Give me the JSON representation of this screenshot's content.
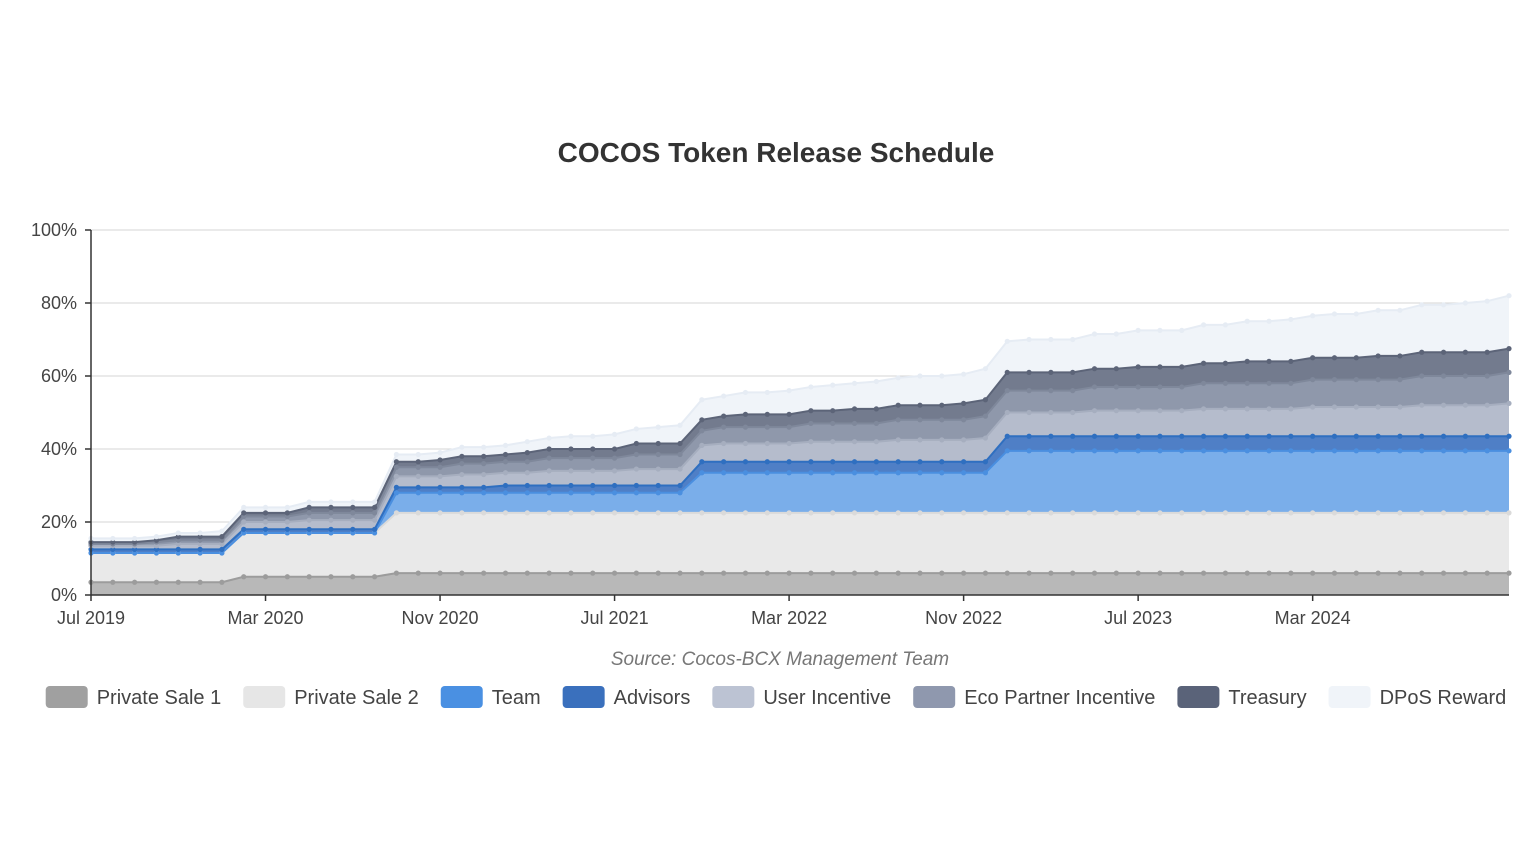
{
  "chart_data": {
    "type": "area",
    "stacked": true,
    "title": "COCOS Token Release Schedule",
    "subtitle": "",
    "source": "Source: Cocos-BCX Management Team",
    "xlabel": "",
    "ylabel": "",
    "x_tick_labels": [
      "Jul 2019",
      "Mar 2020",
      "Nov 2020",
      "Jul 2021",
      "Mar 2022",
      "Nov 2022",
      "Jul 2023",
      "Mar 2024"
    ],
    "y_tick_labels": [
      "0%",
      "20%",
      "40%",
      "60%",
      "80%",
      "100%"
    ],
    "ylim": [
      0,
      100
    ],
    "y_unit": "%",
    "grid": "horizontal",
    "legend_position": "bottom",
    "x_start": "Jul 2019",
    "x_end": "Nov 2024",
    "point_interval": "monthly",
    "series": [
      {
        "name": "Private Sale 1",
        "color": "#b8b8b8",
        "line_color": "#9c9c9c",
        "legend_color": "#a0a0a0",
        "values": [
          3.5,
          3.5,
          3.5,
          3.5,
          3.5,
          3.5,
          3.5,
          5,
          5,
          5,
          5,
          5,
          5,
          5,
          6,
          6,
          6,
          6,
          6,
          6,
          6,
          6,
          6,
          6,
          6,
          6,
          6,
          6,
          6,
          6,
          6,
          6,
          6,
          6,
          6,
          6,
          6,
          6,
          6,
          6,
          6,
          6,
          6,
          6,
          6,
          6,
          6,
          6,
          6,
          6,
          6,
          6,
          6,
          6,
          6,
          6,
          6,
          6,
          6,
          6,
          6,
          6,
          6,
          6,
          6,
          6
        ]
      },
      {
        "name": "Private Sale 2",
        "color": "#e9e9e9",
        "line_color": "#dadada",
        "legend_color": "#e6e6e6",
        "values": [
          8,
          8,
          8,
          8,
          8,
          8,
          8,
          12,
          12,
          12,
          12,
          12,
          12,
          12,
          16.5,
          16.5,
          16.5,
          16.5,
          16.5,
          16.5,
          16.5,
          16.5,
          16.5,
          16.5,
          16.5,
          16.5,
          16.5,
          16.5,
          16.5,
          16.5,
          16.5,
          16.5,
          16.5,
          16.5,
          16.5,
          16.5,
          16.5,
          16.5,
          16.5,
          16.5,
          16.5,
          16.5,
          16.5,
          16.5,
          16.5,
          16.5,
          16.5,
          16.5,
          16.5,
          16.5,
          16.5,
          16.5,
          16.5,
          16.5,
          16.5,
          16.5,
          16.5,
          16.5,
          16.5,
          16.5,
          16.5,
          16.5,
          16.5,
          16.5,
          16.5,
          16.5
        ]
      },
      {
        "name": "Team",
        "color": "#7aaeea",
        "line_color": "#4a8fe0",
        "legend_color": "#4a90e2",
        "values": [
          0,
          0,
          0,
          0,
          0,
          0,
          0,
          0,
          0,
          0,
          0,
          0,
          0,
          0,
          5.5,
          5.5,
          5.5,
          5.5,
          5.5,
          5.5,
          5.5,
          5.5,
          5.5,
          5.5,
          5.5,
          5.5,
          5.5,
          5.5,
          11,
          11,
          11,
          11,
          11,
          11,
          11,
          11,
          11,
          11,
          11,
          11,
          11,
          11,
          17,
          17,
          17,
          17,
          17,
          17,
          17,
          17,
          17,
          17,
          17,
          17,
          17,
          17,
          17,
          17,
          17,
          17,
          17,
          17,
          17,
          17,
          17,
          17
        ]
      },
      {
        "name": "Advisors",
        "color": "#4f7fc6",
        "line_color": "#2f6fc0",
        "legend_color": "#3a70bd",
        "values": [
          1,
          1,
          1,
          1,
          1,
          1,
          1,
          1,
          1,
          1,
          1,
          1,
          1,
          1,
          1.5,
          1.5,
          1.5,
          1.5,
          1.5,
          2,
          2,
          2,
          2,
          2,
          2,
          2,
          2,
          2,
          3,
          3,
          3,
          3,
          3,
          3,
          3,
          3,
          3,
          3,
          3,
          3,
          3,
          3,
          4,
          4,
          4,
          4,
          4,
          4,
          4,
          4,
          4,
          4,
          4,
          4,
          4,
          4,
          4,
          4,
          4,
          4,
          4,
          4,
          4,
          4,
          4,
          4
        ]
      },
      {
        "name": "User Incentive",
        "color": "#b5bccc",
        "line_color": "#a6aebf",
        "legend_color": "#bcc3d3",
        "values": [
          1,
          1,
          1,
          1,
          1.5,
          1.5,
          1.5,
          2,
          2,
          2,
          2.5,
          2.5,
          2.5,
          2.5,
          3,
          3,
          3,
          3.5,
          3.5,
          3.5,
          3.5,
          4,
          4,
          4,
          4,
          4.5,
          4.5,
          4.5,
          4.5,
          5,
          5,
          5,
          5,
          5.5,
          5.5,
          5.5,
          5.5,
          6,
          6,
          6,
          6,
          6.5,
          6.5,
          6.5,
          6.5,
          6.5,
          7,
          7,
          7,
          7,
          7,
          7.5,
          7.5,
          7.5,
          7.5,
          7.5,
          8,
          8,
          8,
          8,
          8,
          8.5,
          8.5,
          8.5,
          8.5,
          9
        ]
      },
      {
        "name": "Eco Partner Incentive",
        "color": "#8f98ab",
        "line_color": "#7f889b",
        "legend_color": "#8f98ae",
        "values": [
          0.5,
          0.5,
          0.5,
          1,
          1,
          1,
          1,
          1.5,
          1.5,
          1.5,
          2,
          2,
          2,
          2,
          2.5,
          2.5,
          2.5,
          3,
          3,
          3,
          3,
          3.5,
          3.5,
          3.5,
          3.5,
          4,
          4,
          4,
          4,
          4.5,
          4.5,
          4.5,
          4.5,
          5,
          5,
          5,
          5,
          5.5,
          5.5,
          5.5,
          5.5,
          6,
          6,
          6,
          6,
          6,
          6.5,
          6.5,
          6.5,
          6.5,
          6.5,
          7,
          7,
          7,
          7,
          7,
          7.5,
          7.5,
          7.5,
          7.5,
          7.5,
          8,
          8,
          8,
          8,
          8.5
        ]
      },
      {
        "name": "Treasury",
        "color": "#737b8e",
        "line_color": "#5c6478",
        "legend_color": "#5a6379",
        "values": [
          0.5,
          0.5,
          0.5,
          0.5,
          1,
          1,
          1,
          1,
          1,
          1,
          1.5,
          1.5,
          1.5,
          1.5,
          1.5,
          1.5,
          2,
          2,
          2,
          2,
          2.5,
          2.5,
          2.5,
          2.5,
          2.5,
          3,
          3,
          3,
          3,
          3,
          3.5,
          3.5,
          3.5,
          3.5,
          3.5,
          4,
          4,
          4,
          4,
          4,
          4.5,
          4.5,
          5,
          5,
          5,
          5,
          5,
          5,
          5.5,
          5.5,
          5.5,
          5.5,
          5.5,
          6,
          6,
          6,
          6,
          6,
          6,
          6.5,
          6.5,
          6.5,
          6.5,
          6.5,
          6.5,
          6.5
        ]
      },
      {
        "name": "DPoS Reward",
        "color": "#f0f4f9",
        "line_color": "#e6ecf4",
        "legend_color": "#f0f4f9",
        "values": [
          1,
          1,
          1,
          1,
          1,
          1,
          1.5,
          1.5,
          1.5,
          1.5,
          1.5,
          1.5,
          1.5,
          1.5,
          2,
          2,
          2,
          2.5,
          2.5,
          2.5,
          3,
          3,
          3.5,
          3.5,
          4,
          4,
          4.5,
          5,
          5.5,
          5.5,
          6,
          6,
          6.5,
          6.5,
          7,
          7,
          7.5,
          7.5,
          8,
          8,
          8,
          8.5,
          8.5,
          9,
          9,
          9,
          9.5,
          9.5,
          10,
          10,
          10,
          10.5,
          10.5,
          11,
          11,
          11.5,
          11.5,
          12,
          12,
          12.5,
          12.5,
          13,
          13,
          13.5,
          14,
          14.5
        ]
      }
    ]
  }
}
